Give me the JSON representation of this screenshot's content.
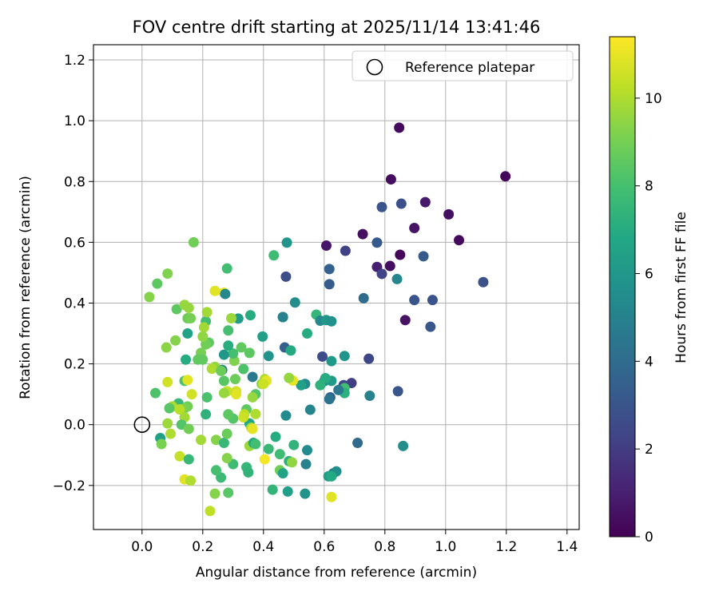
{
  "chart_data": {
    "type": "scatter",
    "title": "FOV centre drift starting at 2025/11/14 13:41:46",
    "xlabel": "Angular distance from reference (arcmin)",
    "ylabel": "Rotation from reference (arcmin)",
    "xlim": [
      -0.16,
      1.44
    ],
    "ylim": [
      -0.345,
      1.25
    ],
    "xticks": [
      0.0,
      0.2,
      0.4,
      0.6,
      0.8,
      1.0,
      1.2,
      1.4
    ],
    "xtick_labels": [
      "0.0",
      "0.2",
      "0.4",
      "0.6",
      "0.8",
      "1.0",
      "1.2",
      "1.4"
    ],
    "yticks": [
      -0.2,
      0.0,
      0.2,
      0.4,
      0.6,
      0.8,
      1.0,
      1.2
    ],
    "ytick_labels": [
      "−0.2",
      "0.0",
      "0.2",
      "0.4",
      "0.6",
      "0.8",
      "1.0",
      "1.2"
    ],
    "grid": true,
    "legend": {
      "placement": "top-right",
      "entries": [
        {
          "label": "Reference platepar",
          "marker": "open-circle",
          "x": 0.0,
          "y": 0.0
        }
      ]
    },
    "colorbar": {
      "label": "Hours from first FF file",
      "colormap": "viridis",
      "range": [
        0,
        11.4
      ],
      "ticks": [
        0,
        2,
        4,
        6,
        8,
        10
      ],
      "tick_labels": [
        "0",
        "2",
        "4",
        "6",
        "8",
        "10"
      ]
    },
    "points": [
      {
        "x": 0.847,
        "y": 0.977,
        "c": 0.3
      },
      {
        "x": 1.197,
        "y": 0.817,
        "c": 0.2
      },
      {
        "x": 0.82,
        "y": 0.807,
        "c": 0.4
      },
      {
        "x": 1.044,
        "y": 0.607,
        "c": 0.3
      },
      {
        "x": 1.01,
        "y": 0.692,
        "c": 0.5
      },
      {
        "x": 0.897,
        "y": 0.647,
        "c": 0.6
      },
      {
        "x": 0.933,
        "y": 0.732,
        "c": 0.8
      },
      {
        "x": 0.727,
        "y": 0.627,
        "c": 0.5
      },
      {
        "x": 0.817,
        "y": 0.522,
        "c": 0.4
      },
      {
        "x": 0.85,
        "y": 0.559,
        "c": 0.2
      },
      {
        "x": 0.607,
        "y": 0.589,
        "c": 0.7
      },
      {
        "x": 0.867,
        "y": 0.344,
        "c": 0.6
      },
      {
        "x": 0.774,
        "y": 0.519,
        "c": 1.0
      },
      {
        "x": 0.854,
        "y": 0.727,
        "c": 2.8
      },
      {
        "x": 0.79,
        "y": 0.716,
        "c": 3.0
      },
      {
        "x": 0.774,
        "y": 0.599,
        "c": 3.2
      },
      {
        "x": 0.79,
        "y": 0.496,
        "c": 2.3
      },
      {
        "x": 0.927,
        "y": 0.554,
        "c": 3.2
      },
      {
        "x": 1.124,
        "y": 0.469,
        "c": 2.8
      },
      {
        "x": 0.897,
        "y": 0.41,
        "c": 3.0
      },
      {
        "x": 0.957,
        "y": 0.41,
        "c": 2.9
      },
      {
        "x": 0.95,
        "y": 0.322,
        "c": 3.1
      },
      {
        "x": 0.73,
        "y": 0.416,
        "c": 4.0
      },
      {
        "x": 0.84,
        "y": 0.479,
        "c": 5.2
      },
      {
        "x": 0.67,
        "y": 0.572,
        "c": 2.2
      },
      {
        "x": 0.617,
        "y": 0.512,
        "c": 3.5
      },
      {
        "x": 0.617,
        "y": 0.462,
        "c": 3.3
      },
      {
        "x": 0.594,
        "y": 0.224,
        "c": 2.6
      },
      {
        "x": 0.747,
        "y": 0.217,
        "c": 2.4
      },
      {
        "x": 0.843,
        "y": 0.11,
        "c": 3.0
      },
      {
        "x": 0.69,
        "y": 0.137,
        "c": 2.1
      },
      {
        "x": 0.664,
        "y": 0.13,
        "c": 2.5
      },
      {
        "x": 0.62,
        "y": 0.09,
        "c": 3.5
      },
      {
        "x": 0.71,
        "y": -0.06,
        "c": 3.9
      },
      {
        "x": 0.75,
        "y": 0.095,
        "c": 5.0
      },
      {
        "x": 0.86,
        "y": -0.07,
        "c": 5.5
      },
      {
        "x": 0.477,
        "y": 0.599,
        "c": 5.9
      },
      {
        "x": 0.434,
        "y": 0.557,
        "c": 7.8
      },
      {
        "x": 0.464,
        "y": 0.354,
        "c": 3.6
      },
      {
        "x": 0.474,
        "y": 0.487,
        "c": 2.7
      },
      {
        "x": 0.504,
        "y": 0.402,
        "c": 5.5
      },
      {
        "x": 0.464,
        "y": 0.354,
        "c": 5.0
      },
      {
        "x": 0.47,
        "y": 0.254,
        "c": 3.4
      },
      {
        "x": 0.49,
        "y": 0.244,
        "c": 6.9
      },
      {
        "x": 0.544,
        "y": 0.3,
        "c": 7.0
      },
      {
        "x": 0.574,
        "y": 0.362,
        "c": 7.5
      },
      {
        "x": 0.587,
        "y": 0.342,
        "c": 5.3
      },
      {
        "x": 0.607,
        "y": 0.344,
        "c": 6.0
      },
      {
        "x": 0.624,
        "y": 0.34,
        "c": 5.7
      },
      {
        "x": 0.667,
        "y": 0.226,
        "c": 5.9
      },
      {
        "x": 0.624,
        "y": 0.209,
        "c": 6.1
      },
      {
        "x": 0.6,
        "y": 0.143,
        "c": 5.4
      },
      {
        "x": 0.624,
        "y": 0.144,
        "c": 6.2
      },
      {
        "x": 0.604,
        "y": 0.153,
        "c": 7.0
      },
      {
        "x": 0.587,
        "y": 0.13,
        "c": 7.3
      },
      {
        "x": 0.537,
        "y": 0.134,
        "c": 5.3
      },
      {
        "x": 0.524,
        "y": 0.13,
        "c": 6.4
      },
      {
        "x": 0.667,
        "y": 0.12,
        "c": 7.9
      },
      {
        "x": 0.667,
        "y": 0.104,
        "c": 7.2
      },
      {
        "x": 0.647,
        "y": 0.114,
        "c": 4.6
      },
      {
        "x": 0.617,
        "y": 0.084,
        "c": 4.4
      },
      {
        "x": 0.554,
        "y": 0.049,
        "c": 5.1
      },
      {
        "x": 0.474,
        "y": 0.03,
        "c": 5.4
      },
      {
        "x": 0.544,
        "y": -0.084,
        "c": 5.4
      },
      {
        "x": 0.5,
        "y": -0.067,
        "c": 7.4
      },
      {
        "x": 0.454,
        "y": -0.097,
        "c": 7.8
      },
      {
        "x": 0.44,
        "y": -0.04,
        "c": 7.0
      },
      {
        "x": 0.417,
        "y": -0.08,
        "c": 7.6
      },
      {
        "x": 0.484,
        "y": -0.12,
        "c": 7.2
      },
      {
        "x": 0.494,
        "y": -0.124,
        "c": 9.5
      },
      {
        "x": 0.54,
        "y": -0.13,
        "c": 5.0
      },
      {
        "x": 0.454,
        "y": -0.15,
        "c": 8.9
      },
      {
        "x": 0.464,
        "y": -0.16,
        "c": 6.6
      },
      {
        "x": 0.63,
        "y": -0.16,
        "c": 5.0
      },
      {
        "x": 0.64,
        "y": -0.154,
        "c": 5.6
      },
      {
        "x": 0.614,
        "y": -0.17,
        "c": 6.3
      },
      {
        "x": 0.624,
        "y": -0.17,
        "c": 6.9
      },
      {
        "x": 0.43,
        "y": -0.214,
        "c": 7.4
      },
      {
        "x": 0.48,
        "y": -0.22,
        "c": 6.4
      },
      {
        "x": 0.537,
        "y": -0.227,
        "c": 5.8
      },
      {
        "x": 0.624,
        "y": -0.238,
        "c": 10.9
      },
      {
        "x": 0.357,
        "y": 0.36,
        "c": 7.0
      },
      {
        "x": 0.354,
        "y": 0.236,
        "c": 8.5
      },
      {
        "x": 0.327,
        "y": 0.254,
        "c": 8.6
      },
      {
        "x": 0.317,
        "y": 0.349,
        "c": 6.3
      },
      {
        "x": 0.397,
        "y": 0.29,
        "c": 6.4
      },
      {
        "x": 0.417,
        "y": 0.226,
        "c": 5.9
      },
      {
        "x": 0.364,
        "y": 0.157,
        "c": 4.6
      },
      {
        "x": 0.334,
        "y": 0.183,
        "c": 8.2
      },
      {
        "x": 0.394,
        "y": 0.134,
        "c": 9.4
      },
      {
        "x": 0.404,
        "y": 0.15,
        "c": 10.0
      },
      {
        "x": 0.41,
        "y": 0.144,
        "c": 11.0
      },
      {
        "x": 0.497,
        "y": 0.145,
        "c": 11.0
      },
      {
        "x": 0.484,
        "y": 0.154,
        "c": 9.6
      },
      {
        "x": 0.4,
        "y": 0.134,
        "c": 10.5
      },
      {
        "x": 0.374,
        "y": 0.1,
        "c": 8.3
      },
      {
        "x": 0.364,
        "y": 0.09,
        "c": 9.6
      },
      {
        "x": 0.344,
        "y": 0.05,
        "c": 8.5
      },
      {
        "x": 0.354,
        "y": 0.004,
        "c": 6.8
      },
      {
        "x": 0.374,
        "y": 0.035,
        "c": 10.0
      },
      {
        "x": 0.337,
        "y": 0.034,
        "c": 10.3
      },
      {
        "x": 0.334,
        "y": 0.024,
        "c": 10.5
      },
      {
        "x": 0.36,
        "y": -0.01,
        "c": 9.8
      },
      {
        "x": 0.364,
        "y": -0.014,
        "c": 11.0
      },
      {
        "x": 0.354,
        "y": -0.07,
        "c": 9.7
      },
      {
        "x": 0.367,
        "y": -0.06,
        "c": 6.8
      },
      {
        "x": 0.374,
        "y": -0.064,
        "c": 7.9
      },
      {
        "x": 0.404,
        "y": -0.114,
        "c": 11.2
      },
      {
        "x": 0.344,
        "y": -0.14,
        "c": 7.5
      },
      {
        "x": 0.35,
        "y": -0.157,
        "c": 7.4
      },
      {
        "x": 0.3,
        "y": -0.13,
        "c": 7.8
      },
      {
        "x": 0.28,
        "y": -0.11,
        "c": 9.3
      },
      {
        "x": 0.26,
        "y": -0.174,
        "c": 7.7
      },
      {
        "x": 0.244,
        "y": -0.15,
        "c": 8.0
      },
      {
        "x": 0.284,
        "y": -0.224,
        "c": 8.4
      },
      {
        "x": 0.24,
        "y": -0.227,
        "c": 9.3
      },
      {
        "x": 0.224,
        "y": -0.284,
        "c": 10.3
      },
      {
        "x": 0.14,
        "y": -0.18,
        "c": 10.9
      },
      {
        "x": 0.16,
        "y": -0.184,
        "c": 10.0
      },
      {
        "x": 0.124,
        "y": -0.104,
        "c": 10.4
      },
      {
        "x": 0.154,
        "y": -0.114,
        "c": 7.6
      },
      {
        "x": 0.194,
        "y": -0.05,
        "c": 9.8
      },
      {
        "x": 0.244,
        "y": -0.05,
        "c": 9.3
      },
      {
        "x": 0.27,
        "y": -0.06,
        "c": 7.6
      },
      {
        "x": 0.28,
        "y": -0.03,
        "c": 8.8
      },
      {
        "x": 0.3,
        "y": 0.02,
        "c": 8.3
      },
      {
        "x": 0.284,
        "y": 0.034,
        "c": 8.5
      },
      {
        "x": 0.31,
        "y": 0.11,
        "c": 10.6
      },
      {
        "x": 0.31,
        "y": 0.1,
        "c": 10.9
      },
      {
        "x": 0.28,
        "y": 0.11,
        "c": 10.4
      },
      {
        "x": 0.27,
        "y": 0.104,
        "c": 9.6
      },
      {
        "x": 0.27,
        "y": 0.144,
        "c": 8.4
      },
      {
        "x": 0.307,
        "y": 0.15,
        "c": 8.8
      },
      {
        "x": 0.304,
        "y": 0.21,
        "c": 9.2
      },
      {
        "x": 0.3,
        "y": 0.234,
        "c": 8.0
      },
      {
        "x": 0.27,
        "y": 0.23,
        "c": 6.0
      },
      {
        "x": 0.24,
        "y": 0.19,
        "c": 9.5
      },
      {
        "x": 0.23,
        "y": 0.184,
        "c": 10.0
      },
      {
        "x": 0.264,
        "y": 0.18,
        "c": 5.0
      },
      {
        "x": 0.26,
        "y": 0.177,
        "c": 8.8
      },
      {
        "x": 0.22,
        "y": 0.27,
        "c": 8.5
      },
      {
        "x": 0.21,
        "y": 0.264,
        "c": 8.9
      },
      {
        "x": 0.194,
        "y": 0.236,
        "c": 9.0
      },
      {
        "x": 0.2,
        "y": 0.214,
        "c": 8.6
      },
      {
        "x": 0.284,
        "y": 0.26,
        "c": 7.1
      },
      {
        "x": 0.284,
        "y": 0.31,
        "c": 8.0
      },
      {
        "x": 0.294,
        "y": 0.35,
        "c": 9.7
      },
      {
        "x": 0.21,
        "y": 0.34,
        "c": 7.9
      },
      {
        "x": 0.214,
        "y": 0.37,
        "c": 9.8
      },
      {
        "x": 0.24,
        "y": 0.44,
        "c": 10.9
      },
      {
        "x": 0.27,
        "y": 0.434,
        "c": 11.0
      },
      {
        "x": 0.274,
        "y": 0.43,
        "c": 5.3
      },
      {
        "x": 0.28,
        "y": 0.514,
        "c": 7.9
      },
      {
        "x": 0.17,
        "y": 0.6,
        "c": 8.9
      },
      {
        "x": 0.084,
        "y": 0.497,
        "c": 9.2
      },
      {
        "x": 0.05,
        "y": 0.464,
        "c": 8.5
      },
      {
        "x": 0.024,
        "y": 0.42,
        "c": 9.3
      },
      {
        "x": 0.114,
        "y": 0.38,
        "c": 8.5
      },
      {
        "x": 0.14,
        "y": 0.394,
        "c": 9.6
      },
      {
        "x": 0.154,
        "y": 0.384,
        "c": 9.6
      },
      {
        "x": 0.15,
        "y": 0.35,
        "c": 8.8
      },
      {
        "x": 0.16,
        "y": 0.35,
        "c": 9.0
      },
      {
        "x": 0.204,
        "y": 0.32,
        "c": 9.8
      },
      {
        "x": 0.2,
        "y": 0.29,
        "c": 9.5
      },
      {
        "x": 0.15,
        "y": 0.3,
        "c": 6.6
      },
      {
        "x": 0.11,
        "y": 0.277,
        "c": 9.3
      },
      {
        "x": 0.08,
        "y": 0.254,
        "c": 9.4
      },
      {
        "x": 0.144,
        "y": 0.214,
        "c": 7.0
      },
      {
        "x": 0.184,
        "y": 0.214,
        "c": 8.6
      },
      {
        "x": 0.14,
        "y": 0.144,
        "c": 8.2
      },
      {
        "x": 0.15,
        "y": 0.147,
        "c": 10.9
      },
      {
        "x": 0.084,
        "y": 0.14,
        "c": 10.6
      },
      {
        "x": 0.044,
        "y": 0.104,
        "c": 8.2
      },
      {
        "x": 0.164,
        "y": 0.1,
        "c": 10.6
      },
      {
        "x": 0.214,
        "y": 0.09,
        "c": 8.1
      },
      {
        "x": 0.12,
        "y": 0.07,
        "c": 7.6
      },
      {
        "x": 0.1,
        "y": 0.06,
        "c": 9.9
      },
      {
        "x": 0.09,
        "y": 0.054,
        "c": 8.4
      },
      {
        "x": 0.15,
        "y": 0.06,
        "c": 8.9
      },
      {
        "x": 0.14,
        "y": 0.054,
        "c": 9.1
      },
      {
        "x": 0.124,
        "y": 0.05,
        "c": 10.2
      },
      {
        "x": 0.14,
        "y": 0.024,
        "c": 9.8
      },
      {
        "x": 0.21,
        "y": 0.034,
        "c": 7.3
      },
      {
        "x": 0.084,
        "y": 0.004,
        "c": 9.7
      },
      {
        "x": 0.13,
        "y": 0.0,
        "c": 8.3
      },
      {
        "x": 0.154,
        "y": -0.014,
        "c": 8.9
      },
      {
        "x": 0.094,
        "y": -0.03,
        "c": 10.0
      },
      {
        "x": 0.06,
        "y": -0.044,
        "c": 6.4
      },
      {
        "x": 0.064,
        "y": -0.064,
        "c": 9.1
      }
    ]
  }
}
